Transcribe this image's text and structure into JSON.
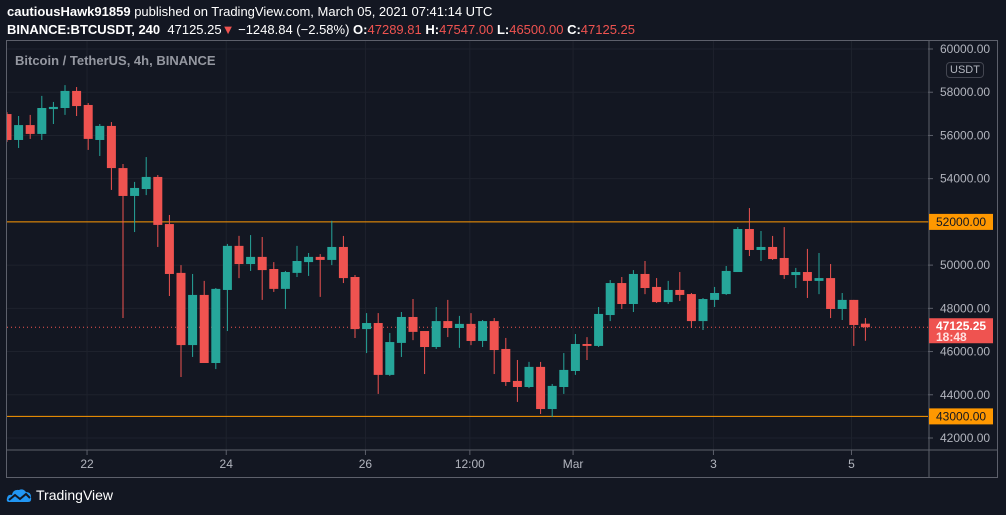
{
  "header": {
    "author": "cautiousHawk91859",
    "published_text": "published on TradingView.com, March 05, 2021 07:41:14 UTC",
    "symbol": "BINANCE:BTCUSDT, 240",
    "last_price": "47125.25",
    "change": "−1248.84 (−2.58%)",
    "open_label": "O:",
    "open": "47289.81",
    "high_label": "H:",
    "high": "47547.00",
    "low_label": "L:",
    "low": "46500.00",
    "close_label": "C:",
    "close": "47125.25"
  },
  "legend": "Bitcoin / TetherUS, 4h, BINANCE",
  "currency_badge": "USDT",
  "footer": {
    "brand": "TradingView"
  },
  "colors": {
    "background": "#131722",
    "up": "#26a69a",
    "down": "#ef5350",
    "level_line": "#ff9800",
    "grid": "#1e222d",
    "axis_text": "#b2b5be"
  },
  "chart_data": {
    "type": "candlestick",
    "interval": "4h",
    "ylim": [
      41000,
      60500
    ],
    "y_ticks": [
      "42000.00",
      "44000.00",
      "46000.00",
      "48000.00",
      "50000.00",
      "52000.00",
      "54000.00",
      "56000.00",
      "58000.00",
      "60000.00"
    ],
    "x_tick_labels": [
      "22",
      "24",
      "26",
      "12:00",
      "Mar",
      "3",
      "5"
    ],
    "grid": true,
    "horizontal_levels": [
      {
        "price": 52000,
        "label": "52000.00",
        "color": "#ff9800"
      },
      {
        "price": 43000,
        "label": "43000.00",
        "color": "#ff9800"
      }
    ],
    "last_price_label": {
      "price": 47125.25,
      "label": "47125.25",
      "countdown": "18:48",
      "color": "#ef5350"
    },
    "candles": [
      [
        56990,
        57080,
        55700,
        55790
      ],
      [
        55790,
        56900,
        55420,
        56480
      ],
      [
        56480,
        56950,
        55840,
        56070
      ],
      [
        56070,
        57830,
        55790,
        57270
      ],
      [
        57220,
        57550,
        56530,
        57320
      ],
      [
        57270,
        58330,
        56950,
        58060
      ],
      [
        58060,
        58240,
        56900,
        57360
      ],
      [
        57410,
        57500,
        55330,
        55840
      ],
      [
        55790,
        56530,
        55050,
        56440
      ],
      [
        56440,
        56620,
        53480,
        54490
      ],
      [
        54490,
        54680,
        47550,
        53200
      ],
      [
        53200,
        53850,
        51530,
        53570
      ],
      [
        53520,
        55000,
        53240,
        54080
      ],
      [
        54080,
        54170,
        50840,
        51860
      ],
      [
        51900,
        52320,
        48570,
        49590
      ],
      [
        49640,
        50000,
        44820,
        46300
      ],
      [
        46300,
        49590,
        45750,
        48620
      ],
      [
        48620,
        49270,
        45470,
        45470
      ],
      [
        45470,
        48940,
        45190,
        48900
      ],
      [
        48850,
        50980,
        46950,
        50890
      ],
      [
        50890,
        51350,
        49400,
        50050
      ],
      [
        50050,
        51390,
        49730,
        50380
      ],
      [
        50380,
        51300,
        48390,
        49770
      ],
      [
        49820,
        50140,
        48760,
        48900
      ],
      [
        48900,
        49730,
        47970,
        49680
      ],
      [
        49640,
        50890,
        49450,
        50190
      ],
      [
        50140,
        50560,
        49500,
        50380
      ],
      [
        50380,
        50510,
        48530,
        50240
      ],
      [
        50240,
        52050,
        50000,
        50840
      ],
      [
        50840,
        51350,
        49170,
        49400
      ],
      [
        49450,
        49540,
        46630,
        47040
      ],
      [
        47040,
        47780,
        45930,
        47320
      ],
      [
        47320,
        47780,
        44040,
        44920
      ],
      [
        44920,
        46860,
        44870,
        46440
      ],
      [
        46400,
        47830,
        45750,
        47600
      ],
      [
        47600,
        48430,
        46530,
        46910
      ],
      [
        46950,
        46950,
        44960,
        46210
      ],
      [
        46210,
        48060,
        46120,
        47410
      ],
      [
        47410,
        48390,
        46670,
        47090
      ],
      [
        47090,
        47650,
        46170,
        47280
      ],
      [
        47280,
        47780,
        46300,
        46490
      ],
      [
        46490,
        47460,
        46210,
        47410
      ],
      [
        47410,
        47550,
        44960,
        46070
      ],
      [
        46120,
        46630,
        44410,
        44590
      ],
      [
        44640,
        45610,
        43670,
        44360
      ],
      [
        44360,
        45520,
        44310,
        45290
      ],
      [
        45290,
        45520,
        43110,
        43340
      ],
      [
        43340,
        44500,
        42970,
        44410
      ],
      [
        44360,
        45930,
        44040,
        45150
      ],
      [
        45100,
        46810,
        44920,
        46350
      ],
      [
        46350,
        46670,
        45610,
        46260
      ],
      [
        46260,
        48060,
        46210,
        47740
      ],
      [
        47690,
        49310,
        47410,
        49170
      ],
      [
        49170,
        49450,
        47970,
        48200
      ],
      [
        48200,
        49770,
        47830,
        49590
      ],
      [
        49590,
        50190,
        48660,
        48940
      ],
      [
        48990,
        49400,
        48250,
        48290
      ],
      [
        48290,
        49270,
        48200,
        48850
      ],
      [
        48850,
        49680,
        48340,
        48620
      ],
      [
        48660,
        48710,
        47090,
        47410
      ],
      [
        47410,
        48480,
        47000,
        48430
      ],
      [
        48390,
        48990,
        48060,
        48710
      ],
      [
        48660,
        49960,
        48620,
        49730
      ],
      [
        49680,
        51760,
        49680,
        51670
      ],
      [
        51670,
        52640,
        50420,
        50700
      ],
      [
        50700,
        51580,
        50190,
        50840
      ],
      [
        50840,
        51350,
        50240,
        50280
      ],
      [
        50330,
        51760,
        49360,
        49540
      ],
      [
        49540,
        49870,
        48940,
        49680
      ],
      [
        49680,
        50750,
        48480,
        49270
      ],
      [
        49270,
        50560,
        48660,
        49400
      ],
      [
        49400,
        50050,
        47550,
        47970
      ],
      [
        47970,
        48710,
        47460,
        48390
      ],
      [
        48390,
        48390,
        46260,
        47230
      ],
      [
        47289.81,
        47547,
        46500,
        47125.25
      ]
    ]
  }
}
